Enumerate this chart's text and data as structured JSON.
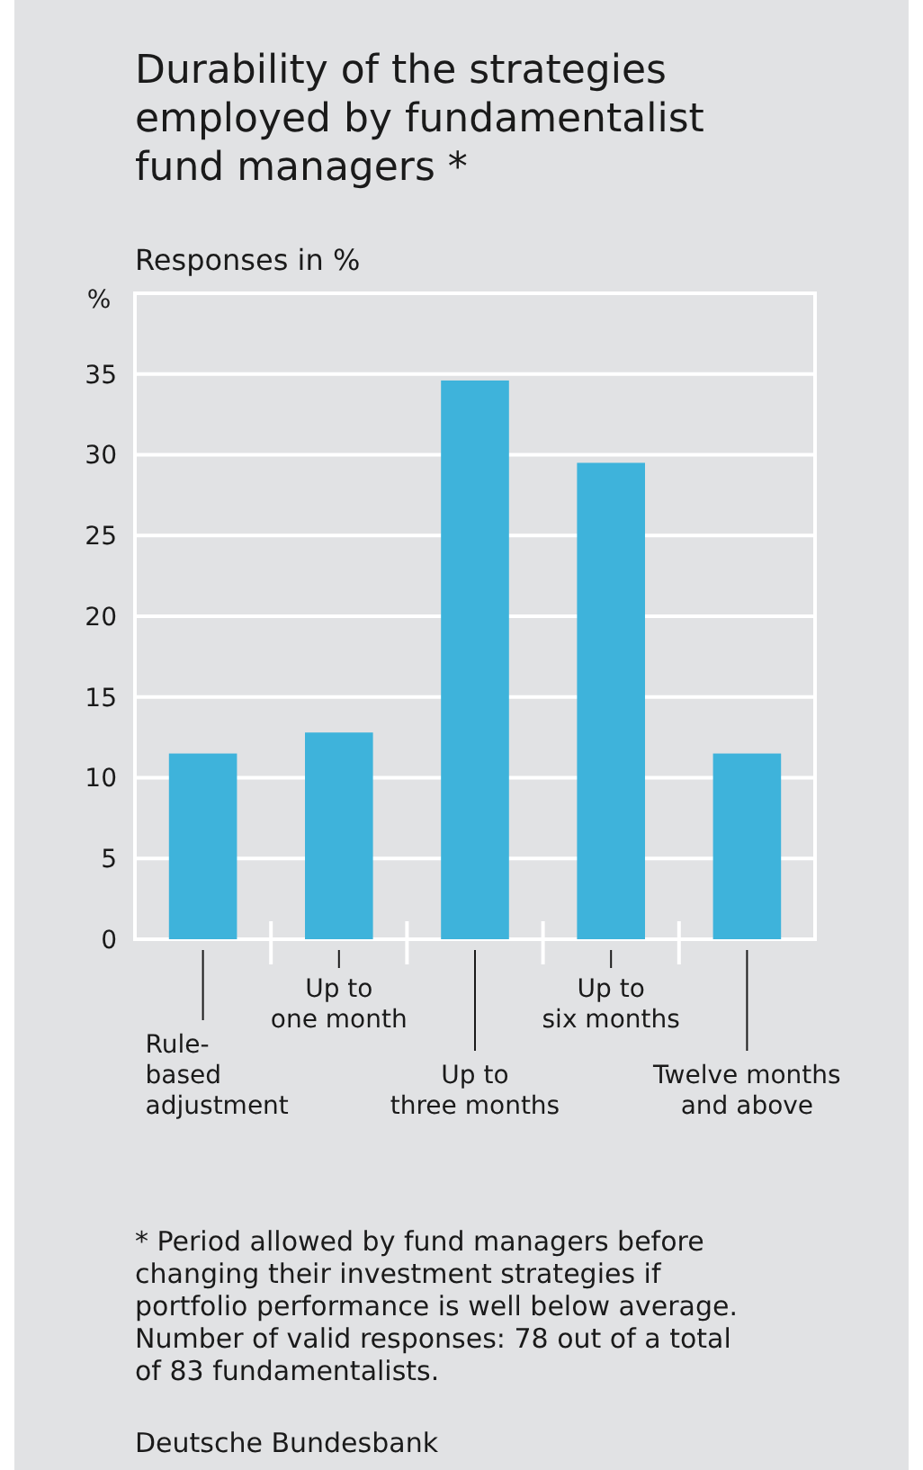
{
  "chart_data": {
    "type": "bar",
    "title": "Durability of the strategies employed by fundamentalist fund managers *",
    "subtitle": "Responses in %",
    "ylabel": "%",
    "categories": [
      "Rule-\nbased\nadjustment",
      "Up to\none month",
      "Up to\nthree months",
      "Up to\nsix months",
      "Twelve months\nand above"
    ],
    "values": [
      11.5,
      12.8,
      34.6,
      29.5,
      11.5
    ],
    "color": "#3eb3db",
    "ylim": [
      0,
      40
    ],
    "yticks": [
      0,
      5,
      10,
      15,
      20,
      25,
      30,
      35,
      {
        "value": 40,
        "label": null
      }
    ],
    "grid": "y",
    "annotations": [
      "* Period allowed by fund managers before changing their investment strategies if portfolio performance is well below average. Number of valid responses: 78 out of a total of 83 fundamentalists.",
      "Deutsche Bundesbank"
    ]
  }
}
